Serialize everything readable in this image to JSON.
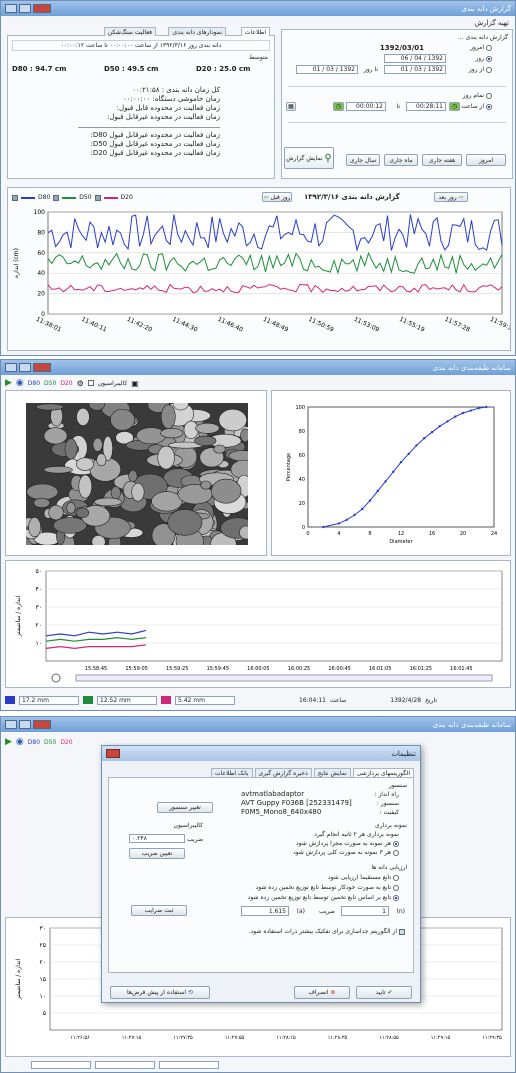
{
  "w1": {
    "title": "گزارش دانه بندی",
    "section_title": "تهیه گزارش",
    "series_label": "گزارش دانه بندی ...",
    "date_today": "1392/03/01",
    "opt_today": "امروز",
    "opt_day": "روز",
    "opt_from": "از روز",
    "to_label": "تا روز",
    "day_val": "1392 / 04 / 06",
    "from_val": "1392 / 03 / 01",
    "to_val": "1392 / 03 / 01",
    "opt_allday": "تمام روز",
    "opt_fromtime": "از ساعت",
    "time_from": "00:28:11",
    "time_to": "00:00:12",
    "until": "تا",
    "btn_today": "امروز",
    "btn_week": "هفته جاری",
    "btn_month": "ماه جاری",
    "btn_year": "سال جاری",
    "btn_show": "نمایش گزارش",
    "tabs": [
      "اطلاعات",
      "نمودارهای دانه بندی",
      "فعالیت سنگ‌شکن"
    ],
    "info_header": "دانه بندی روز ۱۳۹۲/۳/۱۶ از ساعت ۰۰:۰۰:۰۰ تا ساعت ۰۰:۰۰:۱۲",
    "avg_label": "متوسط",
    "d80": "D80 : 94.7 cm",
    "d50": "D50 : 49.5 cm",
    "d20": "D20 : 25.0 cm",
    "info_lines": [
      "کل زمان دانه بندی :   ۰۰:۲۱:۵۸",
      "زمان خاموشی دستگاه:  ۰۰:۰۰:۰۰",
      "زمان فعالیت در محدوده قابل قبول:",
      "زمان فعالیت در محدوده غیرقابل قبول:"
    ],
    "info_lines2": [
      "زمان فعالیت در محدوده غیرقابل قبول D80:",
      "زمان فعالیت در محدوده غیرقابل قبول D50:",
      "زمان فعالیت در محدوده غیرقابل قبول D20:"
    ],
    "btn_next": "روز بعد",
    "btn_prev": "روز قبل",
    "chart_title": "گزارش دانه بندی  ۱۳۹۲/۳/۱۶",
    "ylabel": "اندازه (cm)"
  },
  "w2": {
    "title": "سامانه طبقه‌بندی دانه بندی",
    "tb_labels": [
      "D80",
      "D50",
      "D20"
    ],
    "tb_camera": "کالیبراسیون",
    "ylabel": "اندازه / سانتیمتر",
    "leg_d80": "17.2 mm",
    "leg_d50": "12.52 mm",
    "leg_d20": "5.42 mm",
    "clock_label": "ساعت",
    "clock_val": "16:04:11",
    "date_label": "تاریخ",
    "date_val": "1392/4/28"
  },
  "w3": {
    "title": "سامانه طبقه‌بندی دانه بندی",
    "dlg_title": "تنظیمات",
    "tabs": [
      "الگوریتمهای پردازشی",
      "نمایش نتایج",
      "ذخیره گزارش گیری",
      "بانک اطلاعات"
    ],
    "sensor_hdr": "سنسور",
    "driver_lbl": "راه انداز :",
    "driver_val": "avtmatlabadaptor",
    "sensor_lbl": "سنسور :",
    "sensor_val": "AVT Guppy F036B [252331479]",
    "quality_lbl": "کیفیت :",
    "quality_val": "F0M5_Mono8_640x480",
    "btn_change_sensor": "تغییر سنسور",
    "sampling_hdr": "نمونه برداری",
    "sampling_line": "نمونه برداری هر   ۲   ثانیه انجام گیرد",
    "opt_every": "هر نمونه به صورت مجزا پردازش شود",
    "opt_each": "هر  ۳  نمونه به صورت کلی پردازش شود",
    "calib_hdr": "کالیبراسیون",
    "coef_lbl": "ضریب :",
    "coef_val": "۰.۲۴۸",
    "btn_coef": "تعیین ضریب",
    "eval_hdr": "ارزیابی دانه ها",
    "eval_opts": [
      "تابع مستقیما ارزیابی شود",
      "تابع به صورت خودکار توسط تابع توزیع تخمین زده شود",
      "تابع بر اساس تابع تخمین توسط تابع توزیع تخمین زده شود"
    ],
    "coef2_lbl": "ضریب",
    "n_lbl": "(n)",
    "n_val": "1",
    "a_lbl": "(a)",
    "a_val": "1.615",
    "btn_register": "ثبت ضرایب",
    "chk_text": "از الگوریتم جداسازی برای تفکیک بیشتر ذرات استفاده شود.",
    "btn_ok": "تایید",
    "btn_cancel": "انصراف",
    "btn_defaults": "استفاده از پیش فرض‌ها",
    "ylabel": "اندازه / سانتیمتر",
    "yticks": [
      "۳۰",
      "۲۵",
      "۲۰",
      "۱۵",
      "۱۰",
      "۵"
    ],
    "xticks": [
      "۱۱:۲۶:۵۶",
      "۱۱:۲۷:۱۵",
      "۱۱:۲۷:۳۵",
      "۱۱:۲۷:۵۵",
      "۱۱:۲۸:۱۵",
      "۱۱:۲۸:۳۵",
      "۱۱:۲۸:۵۵",
      "۱۱:۲۹:۱۵",
      "۱۱:۲۹:۳۵"
    ]
  },
  "chart_data": [
    {
      "type": "line",
      "title": "گزارش دانه بندی  ۱۳۹۲/۳/۱۶",
      "xlabel": "",
      "ylabel": "اندازه (cm)",
      "ylim": [
        0,
        100
      ],
      "yticks": [
        0,
        20,
        40,
        60,
        80,
        100
      ],
      "xtick_labels": [
        "11:38:01",
        "11:40:11",
        "11:42:20",
        "11:44:30",
        "11:46:40",
        "11:48:49",
        "11:50:59",
        "11:53:09",
        "11:55:19",
        "11:57:28",
        "11:59:38"
      ],
      "legend": [
        "D80",
        "D50",
        "D20"
      ],
      "series": [
        {
          "name": "D80",
          "color": "#2a3cc8",
          "mean": 80,
          "amp": 18
        },
        {
          "name": "D50",
          "color": "#1e8c3a",
          "mean": 50,
          "amp": 10
        },
        {
          "name": "D20",
          "color": "#d0267a",
          "mean": 25,
          "amp": 4
        }
      ]
    },
    {
      "type": "scatter",
      "title": "",
      "xlabel": "Diameter",
      "ylabel": "Percentage",
      "xlim": [
        0,
        24
      ],
      "ylim": [
        0,
        100
      ],
      "x": [
        2,
        4,
        5,
        6,
        7,
        8,
        9,
        10,
        11,
        12,
        13,
        14,
        15,
        16,
        17,
        18,
        19,
        20,
        21,
        22,
        23
      ],
      "y": [
        0,
        3,
        6,
        10,
        15,
        22,
        30,
        38,
        46,
        54,
        61,
        68,
        74,
        79,
        84,
        88,
        92,
        95,
        97,
        99,
        100
      ]
    },
    {
      "type": "line",
      "title": "",
      "ylabel": "اندازه / سانتیمتر",
      "ylim": [
        0,
        50
      ],
      "yticks": [
        "۵۰",
        "۴۰",
        "۳۰",
        "۲۰",
        "۱۰"
      ],
      "xtick_labels": [
        "15:58:45",
        "15:59:05",
        "15:59:25",
        "15:59:45",
        "16:00:05",
        "16:00:25",
        "16:00:45",
        "16:01:05",
        "16:01:25",
        "16:01:45"
      ],
      "series": [
        {
          "name": "D80",
          "color": "#2a3cc8",
          "values": [
            14,
            15,
            14,
            16,
            15,
            16,
            15,
            17
          ]
        },
        {
          "name": "D50",
          "color": "#1e8c3a",
          "values": [
            11,
            12,
            11,
            12,
            12,
            13,
            12,
            13
          ]
        },
        {
          "name": "D20",
          "color": "#d0267a",
          "values": [
            7,
            8,
            7,
            8,
            8,
            8,
            8,
            9
          ]
        }
      ]
    }
  ]
}
